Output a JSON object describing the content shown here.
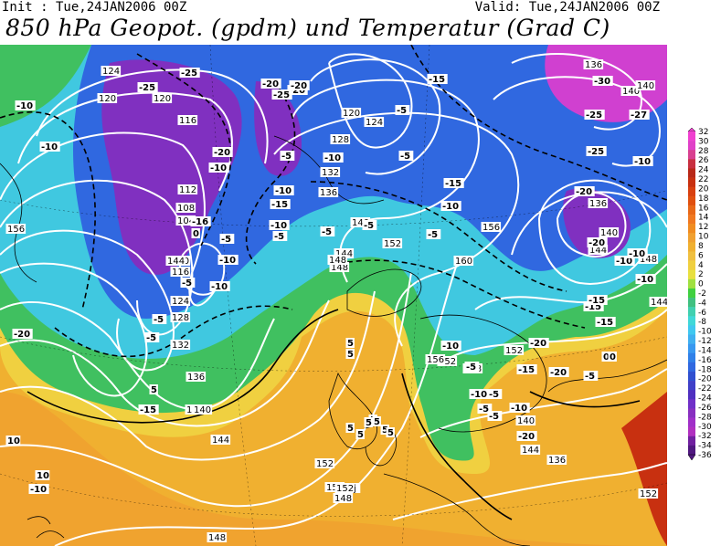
{
  "header": {
    "init": "Init : Tue,24JAN2006 00Z",
    "valid": "Valid: Tue,24JAN2006 00Z",
    "title": "850 hPa Geopot. (gpdm) und Temperatur (Grad C)"
  },
  "legend": {
    "ticks": [
      "32",
      "30",
      "28",
      "26",
      "24",
      "22",
      "20",
      "18",
      "16",
      "14",
      "12",
      "10",
      "8",
      "6",
      "4",
      "2",
      "0",
      "-2",
      "-4",
      "-6",
      "-8",
      "-10",
      "-12",
      "-14",
      "-16",
      "-18",
      "-20",
      "-22",
      "-24",
      "-26",
      "-28",
      "-30",
      "-32",
      "-34",
      "-36"
    ],
    "colors": [
      "#f040d0",
      "#e040c8",
      "#d84090",
      "#c83040",
      "#b82818",
      "#c83010",
      "#d84010",
      "#e05010",
      "#e86818",
      "#f07820",
      "#f08c20",
      "#f0a030",
      "#f0b030",
      "#f0c040",
      "#f0d040",
      "#e8e040",
      "#a0e040",
      "#40d040",
      "#40c080",
      "#40d0b0",
      "#40d8d8",
      "#40c8f0",
      "#40b0f0",
      "#3898f0",
      "#3080e8",
      "#3068e0",
      "#3050d0",
      "#4040c8",
      "#5030c0",
      "#7030c8",
      "#8830c0",
      "#a030c8",
      "#b030c0",
      "#7020a0",
      "#501880"
    ]
  },
  "map": {
    "geopotential_labels": [
      "124",
      "120",
      "120",
      "116",
      "112",
      "108",
      "104",
      "120",
      "116",
      "124",
      "128",
      "132",
      "136",
      "140",
      "120",
      "124",
      "128",
      "132",
      "136",
      "140",
      "144",
      "148",
      "152",
      "156",
      "160",
      "136",
      "140",
      "144",
      "148",
      "152",
      "148",
      "152",
      "156",
      "140",
      "144",
      "140",
      "136",
      "144",
      "144",
      "152",
      "152",
      "148",
      "148",
      "152",
      "156",
      "152j",
      "148",
      "140",
      "136",
      "144",
      "140"
    ],
    "temperature_labels": [
      "-10",
      "-25",
      "-25",
      "-20",
      "-20",
      "-25",
      "-20",
      "-10",
      "-10",
      "-5",
      "-10",
      "-15",
      "-20",
      "-5",
      "-5",
      "-15",
      "-10",
      "-10",
      "-5",
      "-5",
      "-5",
      "-5",
      "-10",
      "-15",
      "-20",
      "-25",
      "-27",
      "-30",
      "-25",
      "-20",
      "-10",
      "-15",
      "-15",
      "-10",
      "-10",
      "-15",
      "-10",
      "-5",
      "-5",
      "-20",
      "-10",
      "-15",
      "-5",
      "0",
      "-5",
      "5",
      "5",
      "5",
      "5",
      "5",
      "5",
      "5",
      "0",
      "5",
      "5",
      "10",
      "10",
      "-10",
      "-5",
      "-20",
      "-16",
      "-10",
      "-5",
      "0",
      "-5",
      "-10",
      "-5",
      "5",
      "-15",
      "-20",
      "-10",
      "-5",
      "-20",
      "-10"
    ],
    "colors": {
      "warm_orange": "#f0a030",
      "yellow": "#f0d040",
      "green": "#40c060",
      "cyan": "#40c8e0",
      "blue": "#3068e0",
      "purple": "#8030c0",
      "magenta": "#d040d0",
      "red": "#c83010"
    }
  }
}
